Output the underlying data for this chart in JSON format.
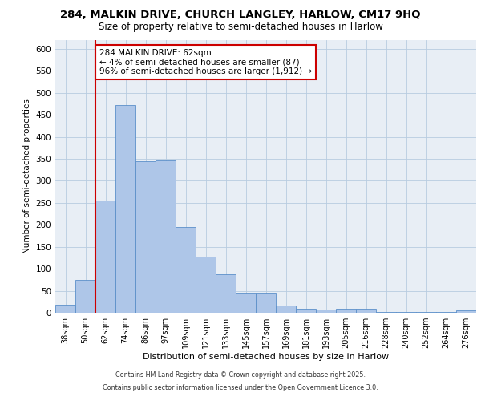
{
  "title1": "284, MALKIN DRIVE, CHURCH LANGLEY, HARLOW, CM17 9HQ",
  "title2": "Size of property relative to semi-detached houses in Harlow",
  "xlabel": "Distribution of semi-detached houses by size in Harlow",
  "ylabel": "Number of semi-detached properties",
  "categories": [
    "38sqm",
    "50sqm",
    "62sqm",
    "74sqm",
    "86sqm",
    "97sqm",
    "109sqm",
    "121sqm",
    "133sqm",
    "145sqm",
    "157sqm",
    "169sqm",
    "181sqm",
    "193sqm",
    "205sqm",
    "216sqm",
    "228sqm",
    "240sqm",
    "252sqm",
    "264sqm",
    "276sqm"
  ],
  "values": [
    18,
    74,
    255,
    472,
    344,
    347,
    196,
    127,
    88,
    46,
    46,
    17,
    9,
    8,
    9,
    9,
    2,
    2,
    1,
    1,
    5
  ],
  "bar_color": "#aec6e8",
  "bar_edge_color": "#5b8fc9",
  "vline_color": "#cc0000",
  "annotation_text": "284 MALKIN DRIVE: 62sqm\n← 4% of semi-detached houses are smaller (87)\n96% of semi-detached houses are larger (1,912) →",
  "annotation_box_color": "#ffffff",
  "annotation_box_edge_color": "#cc0000",
  "ylim": [
    0,
    620
  ],
  "yticks": [
    0,
    50,
    100,
    150,
    200,
    250,
    300,
    350,
    400,
    450,
    500,
    550,
    600
  ],
  "background_color": "#e8eef5",
  "footnote1": "Contains HM Land Registry data © Crown copyright and database right 2025.",
  "footnote2": "Contains public sector information licensed under the Open Government Licence 3.0."
}
